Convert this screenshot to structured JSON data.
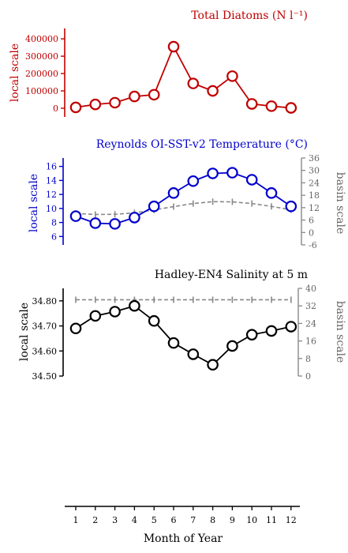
{
  "chart_data": [
    {
      "type": "line",
      "title": "Total Diatoms (N l⁻¹)",
      "ylabel": "local scale",
      "x": [
        1,
        2,
        3,
        4,
        5,
        6,
        7,
        8,
        9,
        10,
        11,
        12
      ],
      "ylim": [
        -50000,
        460000
      ],
      "yticks": [
        0,
        100000,
        200000,
        300000,
        400000
      ],
      "series": [
        {
          "values": [
            5000,
            22000,
            32000,
            68000,
            78000,
            355000,
            143000,
            100000,
            185000,
            25000,
            12000,
            2000
          ]
        }
      ],
      "colors": {
        "main": "#c00000"
      }
    },
    {
      "type": "line",
      "title": "Reynolds OI-SST-v2 Temperature (°C)",
      "ylabel": "local scale",
      "y2label": "basin scale",
      "x": [
        1,
        2,
        3,
        4,
        5,
        6,
        7,
        8,
        9,
        10,
        11,
        12
      ],
      "ylim": [
        4.8,
        17.2
      ],
      "yticks": [
        6,
        8,
        10,
        12,
        14,
        16
      ],
      "y2lim": [
        -6,
        36
      ],
      "y2ticks": [
        -6,
        0,
        6,
        12,
        18,
        24,
        30,
        36
      ],
      "series": [
        {
          "values": [
            8.9,
            7.9,
            7.8,
            8.7,
            10.3,
            12.2,
            13.9,
            15.0,
            15.1,
            14.1,
            12.2,
            10.3
          ],
          "axis": "local"
        },
        {
          "values": [
            9.2,
            8.7,
            8.8,
            9.5,
            10.9,
            12.5,
            14.0,
            14.9,
            14.8,
            14.0,
            12.6,
            11.0
          ],
          "axis": "basin",
          "style": "dashed"
        }
      ],
      "colors": {
        "main": "#0000cc",
        "basin": "#888888"
      }
    },
    {
      "type": "line",
      "title": "Hadley-EN4 Salinity at 5 m",
      "ylabel": "local scale",
      "y2label": "basin scale",
      "xlabel": "Month of Year",
      "x": [
        1,
        2,
        3,
        4,
        5,
        6,
        7,
        8,
        9,
        10,
        11,
        12
      ],
      "ylim": [
        34.5,
        34.85
      ],
      "yticks": [
        "34.50",
        "34.60",
        "34.70",
        "34.80"
      ],
      "y2lim": [
        0,
        40
      ],
      "y2ticks": [
        0,
        8,
        16,
        24,
        32,
        40
      ],
      "series": [
        {
          "values": [
            34.69,
            34.74,
            34.757,
            34.78,
            34.72,
            34.632,
            34.587,
            34.545,
            34.62,
            34.665,
            34.68,
            34.697
          ],
          "axis": "local"
        },
        {
          "values": [
            34.8,
            34.8,
            34.8,
            34.8,
            34.8,
            34.8,
            34.8,
            34.8,
            34.8,
            34.8,
            34.8,
            34.8
          ],
          "axis": "basin",
          "style": "dashed"
        }
      ],
      "colors": {
        "main": "#000000",
        "basin": "#888888"
      }
    }
  ],
  "xaxis": {
    "label": "Month of Year",
    "ticks": [
      "1",
      "2",
      "3",
      "4",
      "5",
      "6",
      "7",
      "8",
      "9",
      "10",
      "11",
      "12"
    ]
  }
}
